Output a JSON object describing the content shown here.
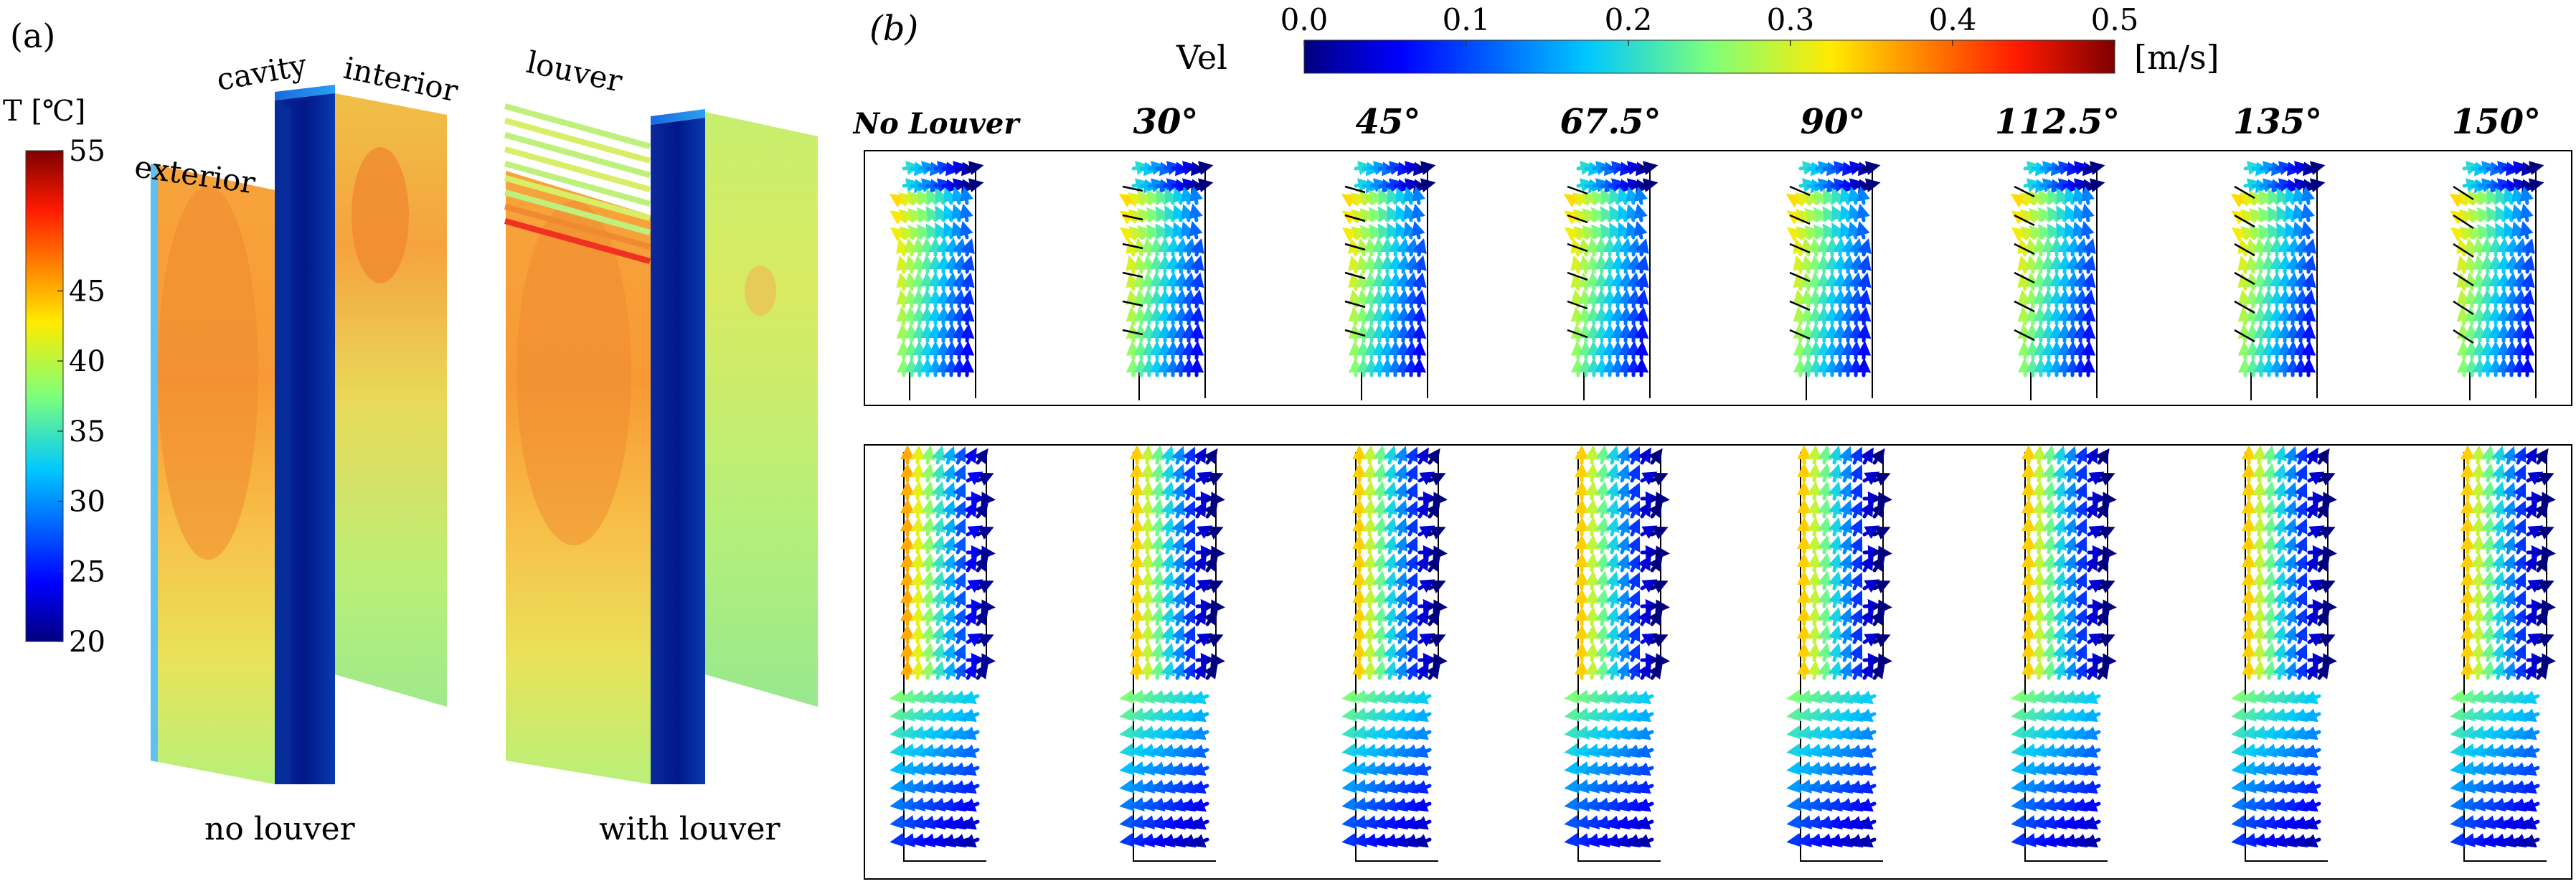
{
  "panel_a": {
    "label": "(a)",
    "colorbar": {
      "title": "T [℃]",
      "ticks": [
        "55",
        "45",
        "40",
        "35",
        "30",
        "25",
        "20"
      ],
      "tick_values": [
        55,
        45,
        40,
        35,
        30,
        25,
        20
      ],
      "range": [
        20,
        55
      ]
    },
    "labels": {
      "exterior": "exterior",
      "cavity": "cavity",
      "interior": "interior",
      "louver": "louver",
      "no_louver": "no louver",
      "with_louver": "with louver"
    }
  },
  "panel_b": {
    "label": "(b)",
    "colorbar": {
      "title": "Vel",
      "unit": "[m/s]",
      "ticks": [
        "0.0",
        "0.1",
        "0.2",
        "0.3",
        "0.4",
        "0.5"
      ],
      "tick_values": [
        0.0,
        0.1,
        0.2,
        0.3,
        0.4,
        0.5
      ],
      "range": [
        0.0,
        0.5
      ]
    },
    "columns": [
      "No Louver",
      "30°",
      "45°",
      "67.5°",
      "90°",
      "112.5°",
      "135°",
      "150°"
    ]
  },
  "colors": {
    "jet_dark_blue": "#00007f",
    "jet_blue": "#0050ff",
    "jet_cyan": "#20c8f0",
    "jet_green": "#7dff7a",
    "jet_yellow": "#ffeb00",
    "jet_orange": "#ff8a00",
    "jet_red": "#ff1a00",
    "jet_dark_red": "#7f0000"
  }
}
